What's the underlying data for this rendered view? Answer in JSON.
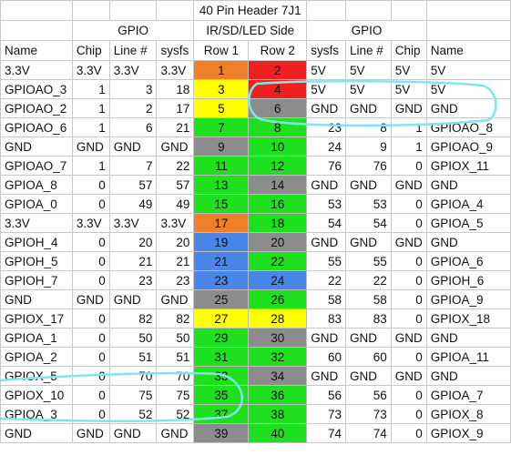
{
  "title": "40 Pin Header 7J1",
  "group_headers": {
    "left": "GPIO",
    "center": "IR/SD/LED Side",
    "right": "GPIO"
  },
  "columns": [
    "Name",
    "Chip",
    "Line #",
    "sysfs",
    "Row 1",
    "Row 2",
    "sysfs",
    "Line #",
    "Chip",
    "Name"
  ],
  "colors": {
    "orange": "#f07f2a",
    "red": "#ee2020",
    "yellow": "#ffff00",
    "green": "#1ee01e",
    "gray": "#8c8c8c",
    "blue": "#4a86e8",
    "annotation": "#7fe7ec"
  },
  "rows": [
    {
      "left": [
        "3.3V",
        "3.3V",
        "3.3V",
        "3.3V"
      ],
      "p1": "1",
      "c1": "orange",
      "p2": "2",
      "c2": "red",
      "right": [
        "5V",
        "5V",
        "5V",
        "5V"
      ]
    },
    {
      "left": [
        "GPIOAO_3",
        "1",
        "3",
        "18"
      ],
      "p1": "3",
      "c1": "yellow",
      "p2": "4",
      "c2": "red",
      "right": [
        "5V",
        "5V",
        "5V",
        "5V"
      ]
    },
    {
      "left": [
        "GPIOAO_2",
        "1",
        "2",
        "17"
      ],
      "p1": "5",
      "c1": "yellow",
      "p2": "6",
      "c2": "gray",
      "right": [
        "GND",
        "GND",
        "GND",
        "GND"
      ]
    },
    {
      "left": [
        "GPIOAO_6",
        "1",
        "6",
        "21"
      ],
      "p1": "7",
      "c1": "green",
      "p2": "8",
      "c2": "green",
      "right": [
        "23",
        "8",
        "1",
        "GPIOAO_8"
      ]
    },
    {
      "left": [
        "GND",
        "GND",
        "GND",
        "GND"
      ],
      "p1": "9",
      "c1": "gray",
      "p2": "10",
      "c2": "green",
      "right": [
        "24",
        "9",
        "1",
        "GPIOAO_9"
      ]
    },
    {
      "left": [
        "GPIOAO_7",
        "1",
        "7",
        "22"
      ],
      "p1": "11",
      "c1": "green",
      "p2": "12",
      "c2": "green",
      "right": [
        "76",
        "76",
        "0",
        "GPIOX_11"
      ]
    },
    {
      "left": [
        "GPIOA_8",
        "0",
        "57",
        "57"
      ],
      "p1": "13",
      "c1": "green",
      "p2": "14",
      "c2": "gray",
      "right": [
        "GND",
        "GND",
        "GND",
        "GND"
      ]
    },
    {
      "left": [
        "GPIOA_0",
        "0",
        "49",
        "49"
      ],
      "p1": "15",
      "c1": "green",
      "p2": "16",
      "c2": "green",
      "right": [
        "53",
        "53",
        "0",
        "GPIOA_4"
      ]
    },
    {
      "left": [
        "3.3V",
        "3.3V",
        "3.3V",
        "3.3V"
      ],
      "p1": "17",
      "c1": "orange",
      "p2": "18",
      "c2": "green",
      "right": [
        "54",
        "54",
        "0",
        "GPIOA_5"
      ]
    },
    {
      "left": [
        "GPIOH_4",
        "0",
        "20",
        "20"
      ],
      "p1": "19",
      "c1": "blue",
      "p2": "20",
      "c2": "gray",
      "right": [
        "GND",
        "GND",
        "GND",
        "GND"
      ]
    },
    {
      "left": [
        "GPIOH_5",
        "0",
        "21",
        "21"
      ],
      "p1": "21",
      "c1": "blue",
      "p2": "22",
      "c2": "green",
      "right": [
        "55",
        "55",
        "0",
        "GPIOA_6"
      ]
    },
    {
      "left": [
        "GPIOH_7",
        "0",
        "23",
        "23"
      ],
      "p1": "23",
      "c1": "blue",
      "p2": "24",
      "c2": "blue",
      "right": [
        "22",
        "22",
        "0",
        "GPIOH_6"
      ]
    },
    {
      "left": [
        "GND",
        "GND",
        "GND",
        "GND"
      ],
      "p1": "25",
      "c1": "gray",
      "p2": "26",
      "c2": "green",
      "right": [
        "58",
        "58",
        "0",
        "GPIOA_9"
      ]
    },
    {
      "left": [
        "GPIOX_17",
        "0",
        "82",
        "82"
      ],
      "p1": "27",
      "c1": "yellow",
      "p2": "28",
      "c2": "yellow",
      "right": [
        "83",
        "83",
        "0",
        "GPIOX_18"
      ]
    },
    {
      "left": [
        "GPIOA_1",
        "0",
        "50",
        "50"
      ],
      "p1": "29",
      "c1": "green",
      "p2": "30",
      "c2": "gray",
      "right": [
        "GND",
        "GND",
        "GND",
        "GND"
      ]
    },
    {
      "left": [
        "GPIOA_2",
        "0",
        "51",
        "51"
      ],
      "p1": "31",
      "c1": "green",
      "p2": "32",
      "c2": "green",
      "right": [
        "60",
        "60",
        "0",
        "GPIOA_11"
      ]
    },
    {
      "left": [
        "GPIOX_5",
        "0",
        "70",
        "70"
      ],
      "p1": "33",
      "c1": "green",
      "p2": "34",
      "c2": "gray",
      "right": [
        "GND",
        "GND",
        "GND",
        "GND"
      ]
    },
    {
      "left": [
        "GPIOX_10",
        "0",
        "75",
        "75"
      ],
      "p1": "35",
      "c1": "green",
      "p2": "36",
      "c2": "green",
      "right": [
        "56",
        "56",
        "0",
        "GPIOA_7"
      ]
    },
    {
      "left": [
        "GPIOA_3",
        "0",
        "52",
        "52"
      ],
      "p1": "37",
      "c1": "green",
      "p2": "38",
      "c2": "green",
      "right": [
        "73",
        "73",
        "0",
        "GPIOX_8"
      ]
    },
    {
      "left": [
        "GND",
        "GND",
        "GND",
        "GND"
      ],
      "p1": "39",
      "c1": "gray",
      "p2": "40",
      "c2": "green",
      "right": [
        "74",
        "74",
        "0",
        "GPIOX_9"
      ]
    }
  ]
}
